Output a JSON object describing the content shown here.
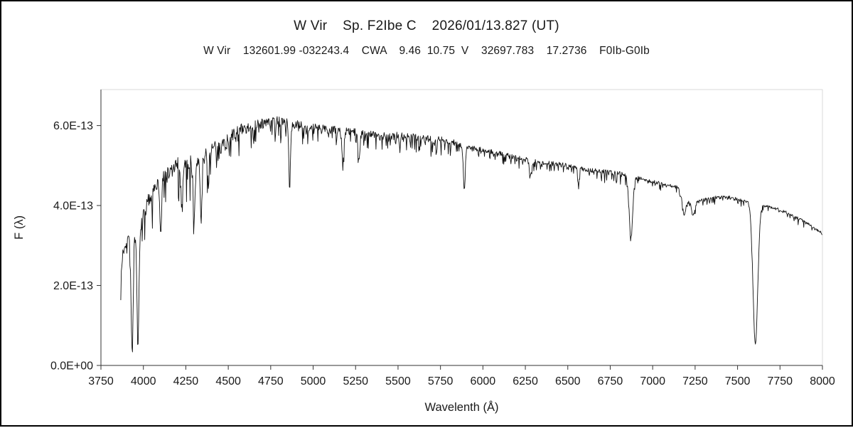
{
  "chart_data": {
    "type": "line",
    "title": "W Vir    Sp. F2Ibe C    2026/01/13.827 (UT)",
    "subtitle": "W Vir    132601.99 -032243.4    CWA    9.46  10.75  V    32697.783    17.2736    F0Ib-G0Ib",
    "xlabel": "Wavelenth (Å)",
    "ylabel": "F (λ)",
    "xlim": [
      3750,
      8000
    ],
    "ylim_e13": [
      0,
      6.9
    ],
    "x_ticks": [
      3750,
      4000,
      4250,
      4500,
      4750,
      5000,
      5250,
      5500,
      5750,
      6000,
      6250,
      6500,
      6750,
      7000,
      7250,
      7500,
      7750,
      8000
    ],
    "y_ticks_e13": [
      0,
      2,
      4,
      6
    ],
    "y_tick_labels": [
      "0.0E+00",
      "2.0E-13",
      "4.0E-13",
      "6.0E-13"
    ],
    "grid": "off",
    "legend": "none",
    "line_color": "#111111",
    "x_data_range": [
      3867,
      8000
    ],
    "continuum_e13": [
      [
        3867,
        2.15
      ],
      [
        3880,
        2.9
      ],
      [
        3900,
        3.1
      ],
      [
        3920,
        3.3
      ],
      [
        3945,
        3.25
      ],
      [
        3990,
        3.5
      ],
      [
        4020,
        4.0
      ],
      [
        4060,
        4.4
      ],
      [
        4100,
        4.6
      ],
      [
        4150,
        4.8
      ],
      [
        4200,
        5.0
      ],
      [
        4250,
        5.05
      ],
      [
        4300,
        5.1
      ],
      [
        4350,
        5.2
      ],
      [
        4400,
        5.4
      ],
      [
        4450,
        5.5
      ],
      [
        4500,
        5.6
      ],
      [
        4550,
        5.8
      ],
      [
        4600,
        5.9
      ],
      [
        4650,
        6.0
      ],
      [
        4700,
        6.05
      ],
      [
        4750,
        6.1
      ],
      [
        4800,
        6.1
      ],
      [
        4850,
        6.05
      ],
      [
        4900,
        6.0
      ],
      [
        5000,
        5.95
      ],
      [
        5100,
        5.9
      ],
      [
        5200,
        5.85
      ],
      [
        5300,
        5.8
      ],
      [
        5400,
        5.75
      ],
      [
        5500,
        5.75
      ],
      [
        5600,
        5.7
      ],
      [
        5700,
        5.65
      ],
      [
        5800,
        5.6
      ],
      [
        5900,
        5.45
      ],
      [
        6000,
        5.4
      ],
      [
        6100,
        5.3
      ],
      [
        6200,
        5.2
      ],
      [
        6300,
        5.1
      ],
      [
        6400,
        5.05
      ],
      [
        6500,
        5.0
      ],
      [
        6600,
        4.9
      ],
      [
        6700,
        4.85
      ],
      [
        6800,
        4.8
      ],
      [
        6860,
        4.75
      ],
      [
        6950,
        4.65
      ],
      [
        7050,
        4.55
      ],
      [
        7150,
        4.45
      ],
      [
        7200,
        4.15
      ],
      [
        7230,
        4.0
      ],
      [
        7270,
        4.1
      ],
      [
        7350,
        4.2
      ],
      [
        7450,
        4.2
      ],
      [
        7550,
        4.1
      ],
      [
        7650,
        4.0
      ],
      [
        7750,
        3.9
      ],
      [
        7850,
        3.7
      ],
      [
        7950,
        3.45
      ],
      [
        8000,
        3.3
      ]
    ],
    "absorption_lines": [
      {
        "center": 3933,
        "depth_e13": 2.8,
        "sigma": 6
      },
      {
        "center": 3968,
        "depth_e13": 2.85,
        "sigma": 6
      },
      {
        "center": 4102,
        "depth_e13": 1.3,
        "sigma": 5
      },
      {
        "center": 4226,
        "depth_e13": 1.1,
        "sigma": 5
      },
      {
        "center": 4300,
        "depth_e13": 1.2,
        "sigma": 7
      },
      {
        "center": 4340,
        "depth_e13": 1.5,
        "sigma": 5
      },
      {
        "center": 4383,
        "depth_e13": 0.9,
        "sigma": 4
      },
      {
        "center": 4861,
        "depth_e13": 1.5,
        "sigma": 5
      },
      {
        "center": 5175,
        "depth_e13": 0.8,
        "sigma": 6
      },
      {
        "center": 5270,
        "depth_e13": 0.6,
        "sigma": 5
      },
      {
        "center": 5890,
        "depth_e13": 1.1,
        "sigma": 5
      },
      {
        "center": 6280,
        "depth_e13": 0.35,
        "sigma": 6
      },
      {
        "center": 6563,
        "depth_e13": 0.4,
        "sigma": 5
      },
      {
        "center": 6872,
        "depth_e13": 1.55,
        "sigma": 10
      },
      {
        "center": 7185,
        "depth_e13": 0.45,
        "sigma": 10
      },
      {
        "center": 7240,
        "depth_e13": 0.25,
        "sigma": 8
      },
      {
        "center": 7605,
        "depth_e13": 3.5,
        "sigma": 14
      }
    ],
    "noise_segments_e13": [
      {
        "from": 3867,
        "to": 3990,
        "amp": 0.22
      },
      {
        "from": 3990,
        "to": 4600,
        "amp": 0.42
      },
      {
        "from": 4600,
        "to": 5000,
        "amp": 0.26
      },
      {
        "from": 5000,
        "to": 5850,
        "amp": 0.2
      },
      {
        "from": 5850,
        "to": 6860,
        "amp": 0.12
      },
      {
        "from": 6860,
        "to": 7580,
        "amp": 0.09
      },
      {
        "from": 7580,
        "to": 8000,
        "amp": 0.07
      }
    ]
  }
}
